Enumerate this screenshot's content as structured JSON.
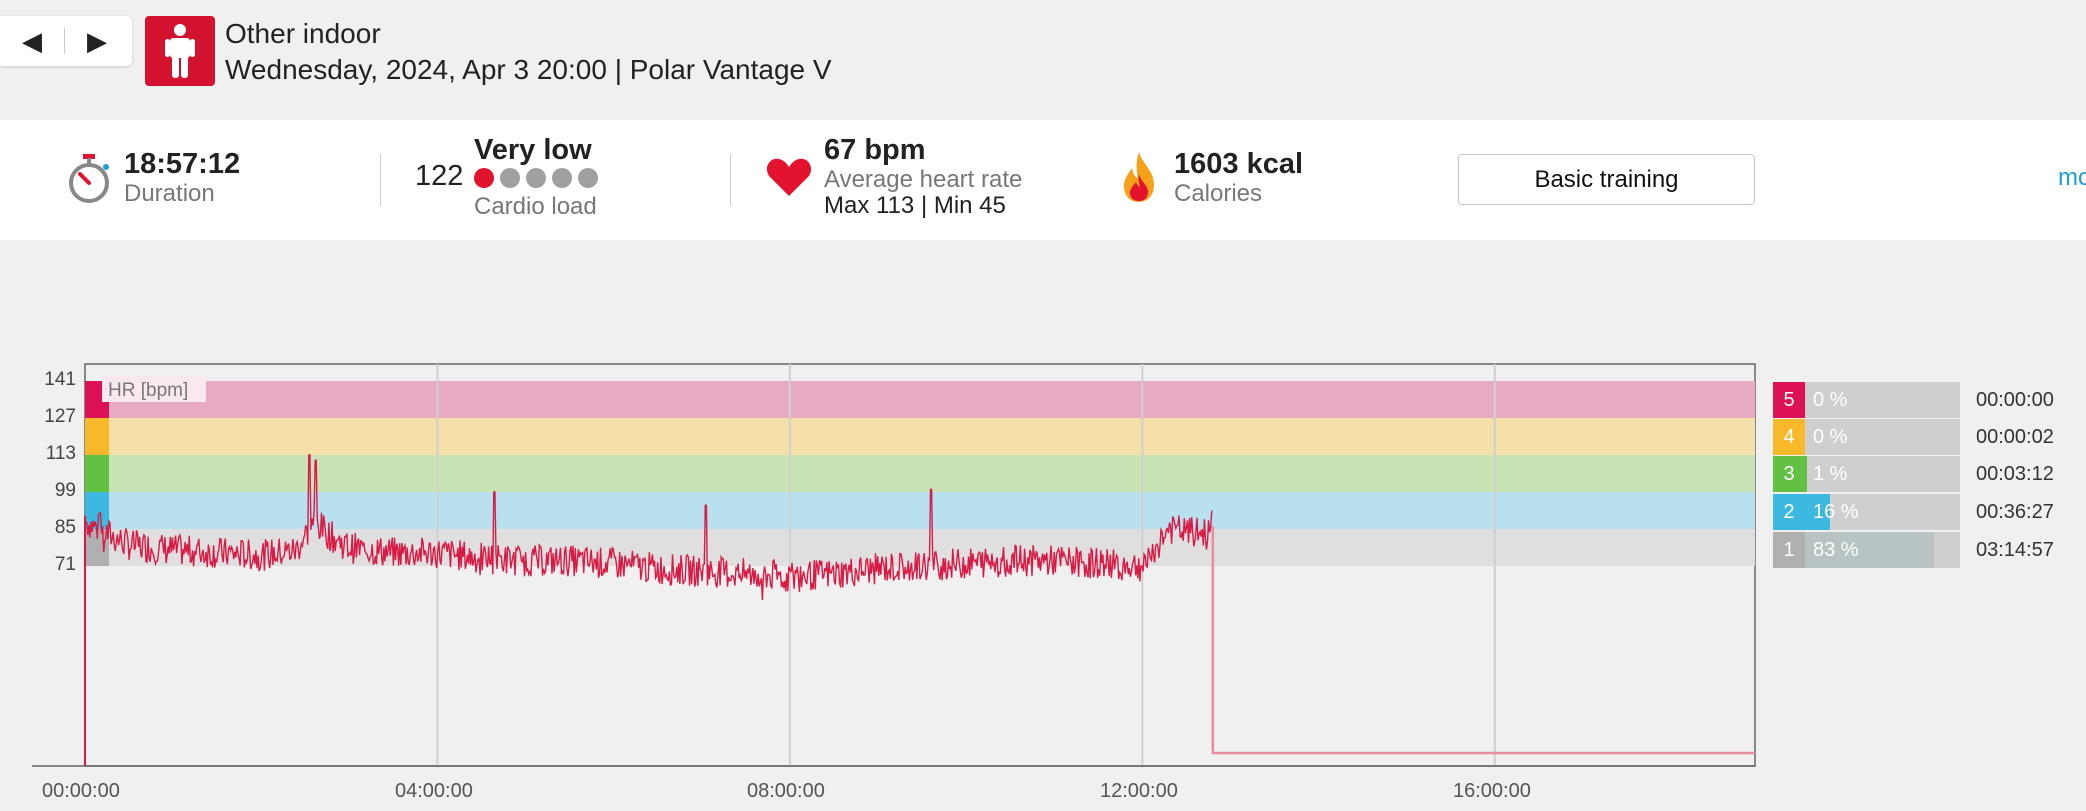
{
  "nav": {
    "prev_icon": "◀",
    "next_icon": "▶"
  },
  "header": {
    "sport": "Other indoor",
    "subtitle": "Wednesday, 2024, Apr 3 20:00 | Polar Vantage V",
    "sport_icon": "person-standing-icon"
  },
  "summary": {
    "duration_value": "18:57:12",
    "duration_label": "Duration",
    "cardio_value": "122",
    "cardio_level": "Very low",
    "cardio_label": "Cardio load",
    "cardio_dots_active": 1,
    "cardio_dots_total": 5,
    "hr_value": "67 bpm",
    "hr_label": "Average heart rate",
    "hr_minmax": "Max 113  |  Min 45",
    "calories_value": "1603 kcal",
    "calories_label": "Calories",
    "benefit_button": "Basic training",
    "more_link": "mo"
  },
  "chart_data": {
    "type": "line",
    "ylabel": "HR [bpm]",
    "yticks": [
      "141",
      "127",
      "113",
      "99",
      "85",
      "71"
    ],
    "xticks": [
      "00:00:00",
      "04:00:00",
      "08:00:00",
      "12:00:00",
      "16:00:00"
    ],
    "x_unit": "hours",
    "xlim": [
      0,
      18.953
    ],
    "ylim_note": "zone bands 71-141 bpm",
    "zones": [
      {
        "zone": "5",
        "from": 127,
        "to": 141,
        "color": "#e8a9c2",
        "marker": "#dd1155"
      },
      {
        "zone": "4",
        "from": 113,
        "to": 127,
        "color": "#f4e0a8",
        "marker": "#f7b82a"
      },
      {
        "zone": "3",
        "from": 99,
        "to": 113,
        "color": "#c8e4b4",
        "marker": "#62c043"
      },
      {
        "zone": "2",
        "from": 85,
        "to": 99,
        "color": "#b8e0ef",
        "marker": "#3db8e0"
      },
      {
        "zone": "1",
        "from": 71,
        "to": 85,
        "color": "#dfdfdf",
        "marker": "#b0b0b0"
      }
    ],
    "series": [
      {
        "color": "#d81b45",
        "x": [
          0,
          0.2,
          0.5,
          1,
          1.5,
          2,
          2.4,
          2.6,
          2.8,
          3,
          3.5,
          4,
          4.5,
          5,
          5.5,
          6,
          6.5,
          7,
          7.5,
          8,
          8.5,
          9,
          9.5,
          10,
          10.5,
          11,
          11.5,
          12,
          12.3,
          12.5,
          12.8
        ],
        "y": [
          88,
          84,
          79,
          77,
          76,
          75,
          77,
          88,
          82,
          78,
          76,
          76,
          74,
          73,
          73,
          72,
          70,
          69,
          68,
          67,
          68,
          70,
          71,
          72,
          73,
          73,
          72,
          71,
          85,
          84,
          83
        ]
      }
    ],
    "spikes": [
      {
        "x": 0.17,
        "y": 91
      },
      {
        "x": 2.55,
        "y": 113
      },
      {
        "x": 2.62,
        "y": 111
      },
      {
        "x": 4.65,
        "y": 99
      },
      {
        "x": 7.05,
        "y": 94
      },
      {
        "x": 9.6,
        "y": 100
      },
      {
        "x": 12.8,
        "y": 92
      }
    ]
  },
  "zone_table": [
    {
      "zone": "5",
      "pct": "0 %",
      "fraction": 0.0,
      "time": "00:00:00",
      "color": "#dd1155"
    },
    {
      "zone": "4",
      "pct": "0 %",
      "fraction": 0.0,
      "time": "00:00:02",
      "color": "#f7b82a"
    },
    {
      "zone": "3",
      "pct": "1 %",
      "fraction": 0.01,
      "time": "00:03:12",
      "color": "#62c043"
    },
    {
      "zone": "2",
      "pct": "16 %",
      "fraction": 0.16,
      "time": "00:36:27",
      "color": "#3db8e0"
    },
    {
      "zone": "1",
      "pct": "83 %",
      "fraction": 0.83,
      "time": "03:14:57",
      "color": "#b0b0b0"
    }
  ]
}
